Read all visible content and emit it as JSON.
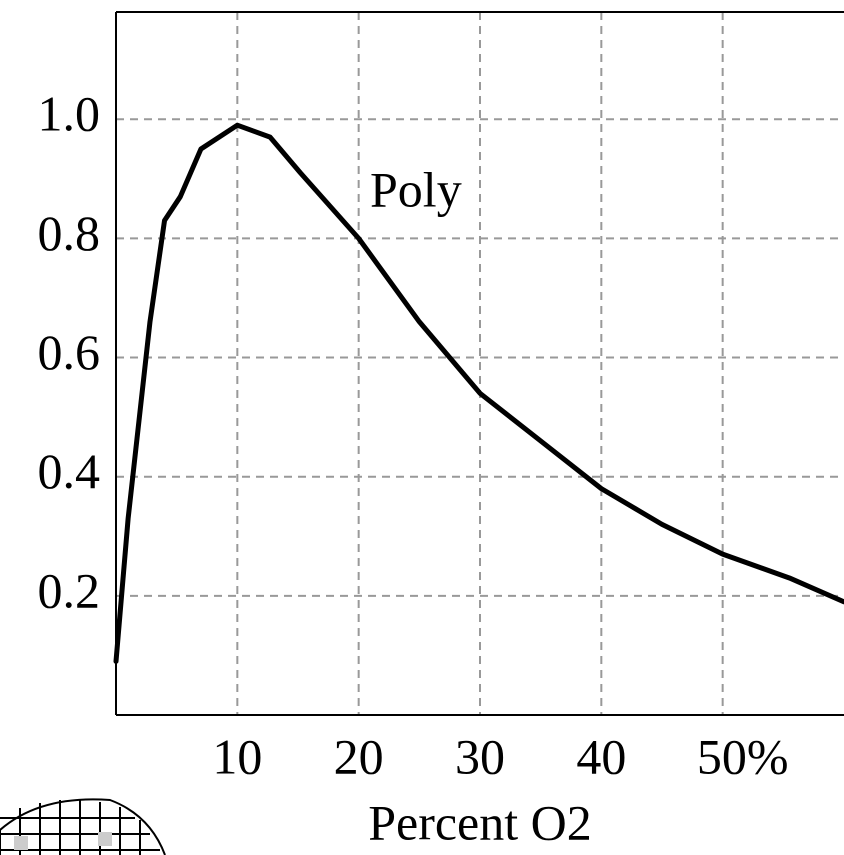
{
  "chart_data": {
    "type": "line",
    "x_label": "Percent O2",
    "annotation": "Poly",
    "x": [
      0,
      1,
      2.8,
      4,
      5.3,
      7,
      10,
      12.7,
      15.2,
      20,
      25,
      30,
      35,
      40,
      45,
      50,
      55.5,
      60
    ],
    "series": [
      {
        "color": "#000000",
        "values": [
          0.09,
          0.33,
          0.66,
          0.83,
          0.87,
          0.95,
          0.99,
          0.97,
          0.91,
          0.8,
          0.66,
          0.54,
          0.46,
          0.38,
          0.32,
          0.27,
          0.23,
          0.19
        ]
      }
    ],
    "xlim": [
      0,
      60
    ],
    "ylim": [
      0,
      1.18
    ],
    "xticks": [
      10,
      20,
      30,
      40,
      {
        "value": 50,
        "label": "50%"
      }
    ],
    "yticks": [
      {
        "value": 1,
        "label": "1.0"
      },
      0.8,
      0.6,
      0.4,
      0.2
    ],
    "grid": true
  }
}
